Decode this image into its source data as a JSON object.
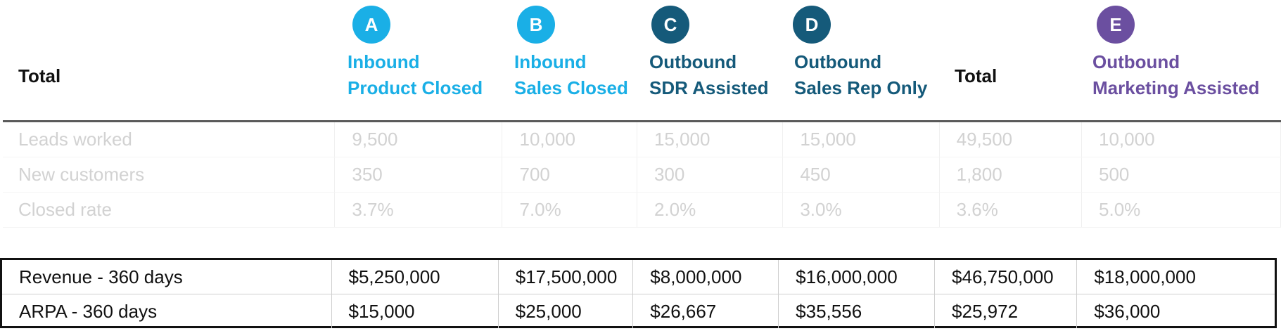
{
  "colors": {
    "inbound": "#1aafe6",
    "outbound": "#155a7a",
    "marketing": "#6b4fa0",
    "text": "#111111",
    "muted_text": "#d2d2d2"
  },
  "header": {
    "total_left": "Total",
    "total_right": "Total",
    "columns": [
      {
        "badge": "A",
        "line1": "Inbound",
        "line2": "Product Closed"
      },
      {
        "badge": "B",
        "line1": "Inbound",
        "line2": "Sales Closed"
      },
      {
        "badge": "C",
        "line1": "Outbound",
        "line2": "SDR Assisted"
      },
      {
        "badge": "D",
        "line1": "Outbound",
        "line2": "Sales Rep Only"
      },
      {
        "badge": "E",
        "line1": "Outbound",
        "line2": "Marketing Assisted"
      }
    ]
  },
  "top_rows": [
    {
      "label": "Leads worked",
      "values": [
        "9,500",
        "10,000",
        "15,000",
        "15,000",
        "49,500",
        "10,000"
      ]
    },
    {
      "label": "New customers",
      "values": [
        "350",
        "700",
        "300",
        "450",
        "1,800",
        "500"
      ]
    },
    {
      "label": "Closed rate",
      "values": [
        "3.7%",
        "7.0%",
        "2.0%",
        "3.0%",
        "3.6%",
        "5.0%"
      ]
    }
  ],
  "bottom_rows": [
    {
      "label": "Revenue - 360 days",
      "values": [
        "$5,250,000",
        "$17,500,000",
        "$8,000,000",
        "$16,000,000",
        "$46,750,000",
        "$18,000,000"
      ]
    },
    {
      "label": "ARPA - 360 days",
      "values": [
        "$15,000",
        "$25,000",
        "$26,667",
        "$35,556",
        "$25,972",
        "$36,000"
      ]
    }
  ]
}
